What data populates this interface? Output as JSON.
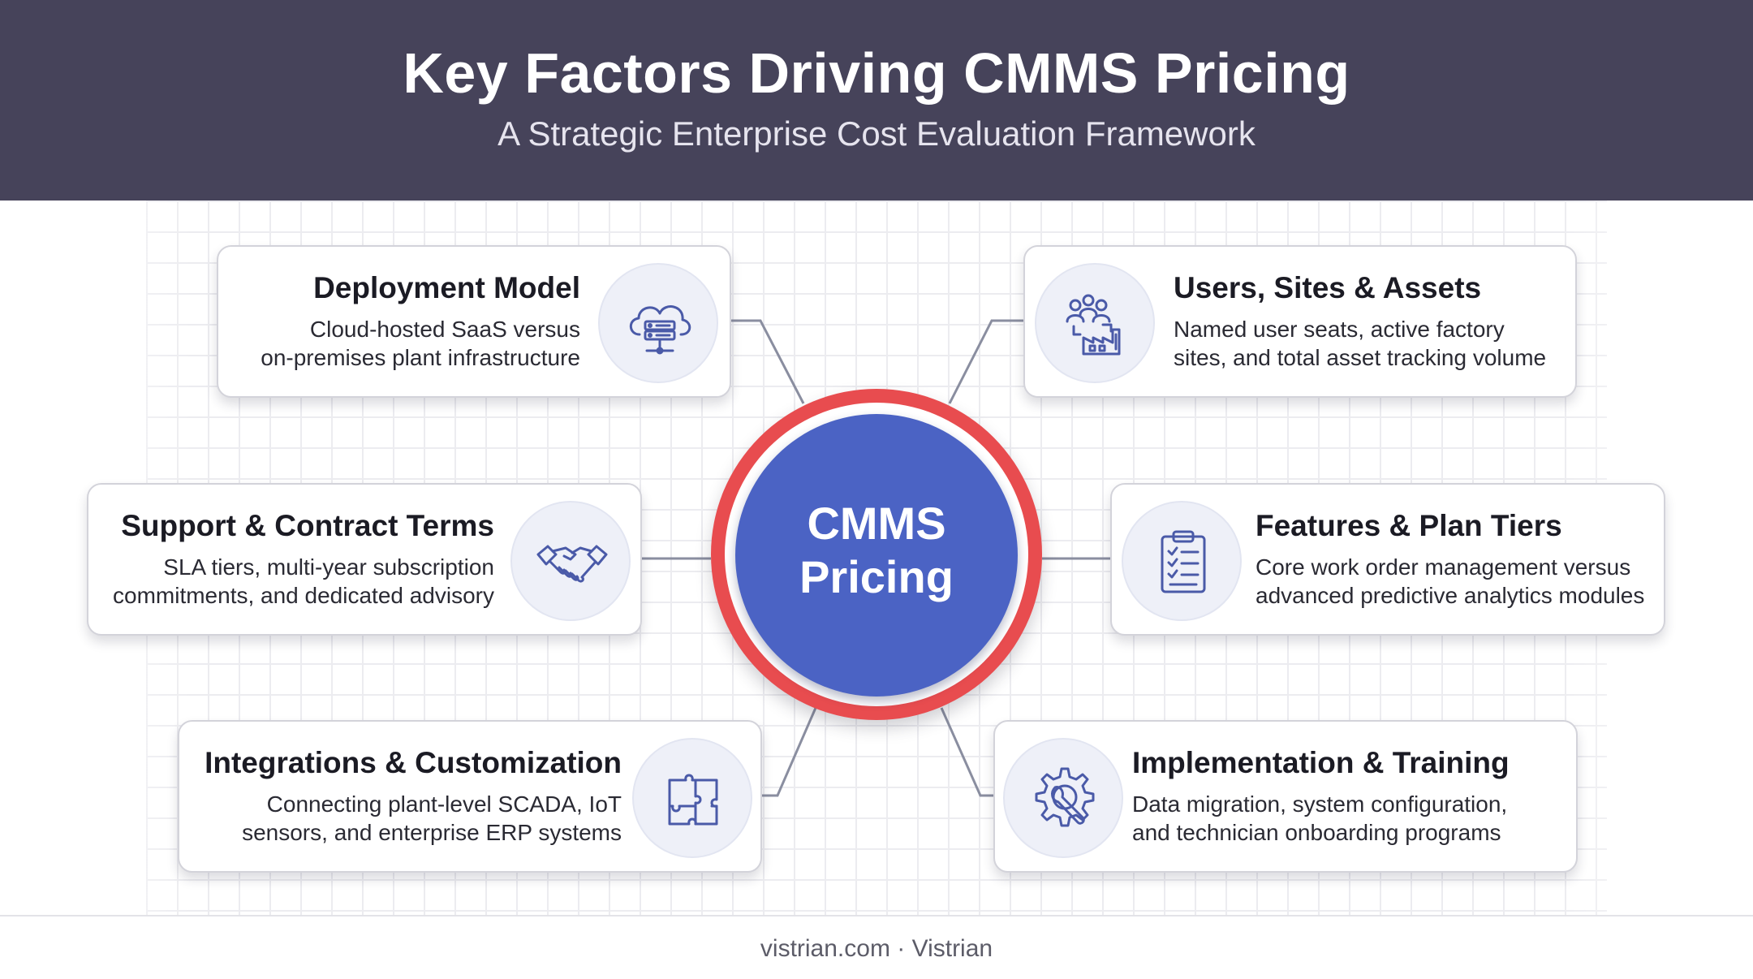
{
  "header": {
    "title": "Key Factors Driving CMMS Pricing",
    "subtitle": "A Strategic Enterprise Cost Evaluation Framework"
  },
  "hub": {
    "line1": "CMMS",
    "line2": "Pricing"
  },
  "factors": {
    "deployment": {
      "title": "Deployment Model",
      "desc1": "Cloud-hosted SaaS versus",
      "desc2": "on-premises plant infrastructure",
      "icon": "cloud-server-icon"
    },
    "users": {
      "title": "Users, Sites & Assets",
      "desc1": "Named user seats, active factory",
      "desc2": "sites, and total asset tracking volume",
      "icon": "users-factory-icon"
    },
    "support": {
      "title": "Support & Contract Terms",
      "desc1": "SLA tiers, multi-year subscription",
      "desc2": "commitments, and dedicated advisory",
      "icon": "handshake-icon"
    },
    "features": {
      "title": "Features & Plan Tiers",
      "desc1": "Core work order management versus",
      "desc2": "advanced predictive analytics modules",
      "icon": "clipboard-checklist-icon"
    },
    "integrations": {
      "title": "Integrations & Customization",
      "desc1": "Connecting plant-level SCADA, IoT",
      "desc2": "sensors, and enterprise ERP systems",
      "icon": "puzzle-icon"
    },
    "implementation": {
      "title": "Implementation & Training",
      "desc1": "Data migration, system configuration,",
      "desc2": "and technician onboarding programs",
      "icon": "gear-wrench-icon"
    }
  },
  "footer": {
    "text": "vistrian.com · Vistrian"
  },
  "colors": {
    "header_bg": "#46435a",
    "hub_ring": "#e84c4f",
    "hub_fill": "#4b63c4",
    "icon_stroke": "#4a5aa8"
  }
}
